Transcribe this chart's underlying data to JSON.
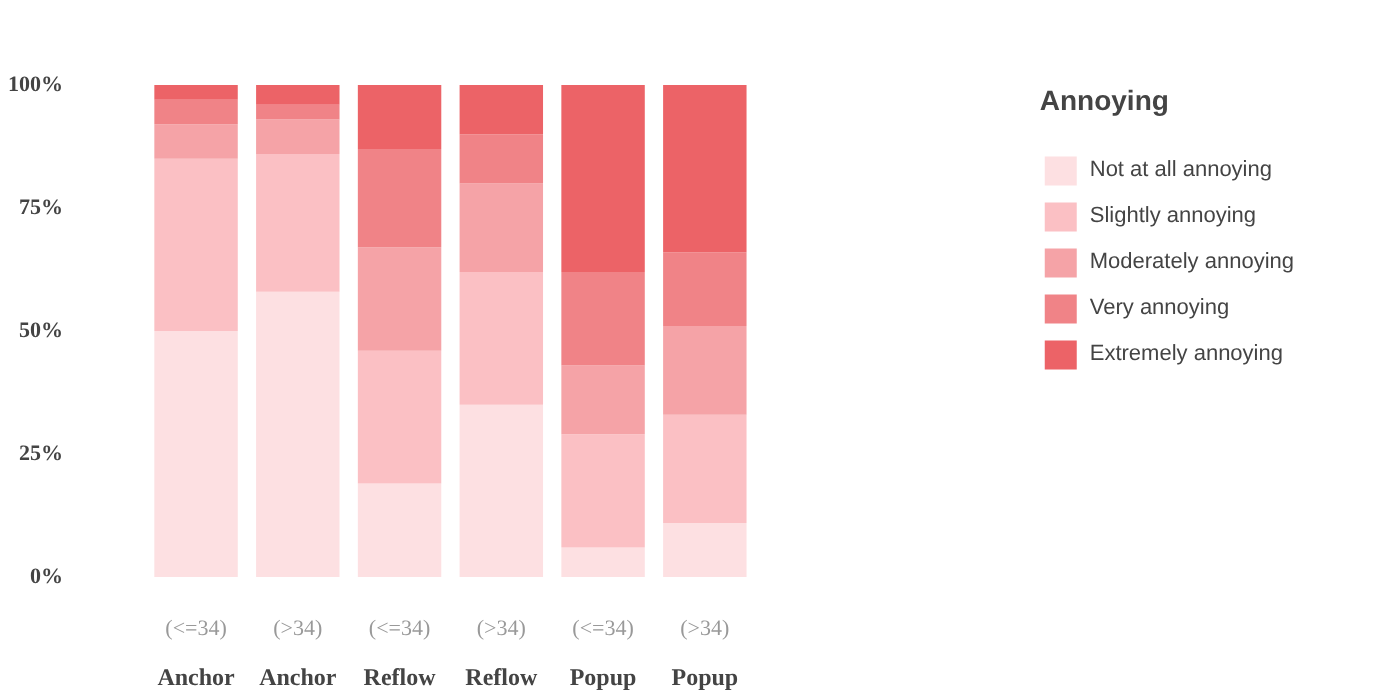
{
  "chart_data": {
    "type": "bar",
    "stacked": true,
    "legend_title": "Annoying",
    "categories": [
      "(<=34)\nAnchor",
      "(>34)\nAnchor",
      "(<=34)\nReflow",
      "(>34)\nReflow",
      "(<=34)\nPopup",
      "(>34)\nPopup"
    ],
    "series": [
      {
        "name": "Not at all annoying",
        "color": "#fde0e2",
        "values": [
          50,
          58,
          19,
          35,
          6,
          11
        ]
      },
      {
        "name": "Slightly annoying",
        "color": "#fbc0c4",
        "values": [
          35,
          28,
          27,
          27,
          23,
          22
        ]
      },
      {
        "name": "Moderately annoying",
        "color": "#f5a3a7",
        "values": [
          7,
          7,
          21,
          18,
          14,
          18
        ]
      },
      {
        "name": "Very annoying",
        "color": "#f08387",
        "values": [
          5,
          3,
          20,
          10,
          19,
          15
        ]
      },
      {
        "name": "Extremely annoying",
        "color": "#ec6367",
        "values": [
          3,
          4,
          13,
          10,
          38,
          34
        ]
      }
    ],
    "ylim": [
      0,
      100
    ],
    "yticks": [
      {
        "value": 0,
        "label": "0%"
      },
      {
        "value": 25,
        "label": "25%"
      },
      {
        "value": 50,
        "label": "50%"
      },
      {
        "value": 75,
        "label": "75%"
      },
      {
        "value": 100,
        "label": "100%"
      }
    ],
    "grid": false,
    "legend": "top right"
  }
}
